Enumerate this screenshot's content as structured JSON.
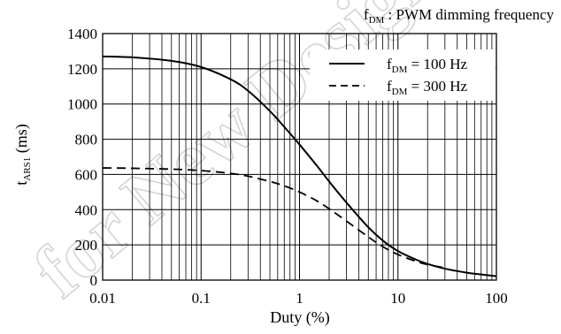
{
  "chart_data": {
    "type": "line",
    "title_main": "f",
    "title_sub": "DM",
    "title_rest": " : PWM dimming frequency",
    "xlabel": "Duty (%)",
    "ylabel_main": "t",
    "ylabel_sub": "ARS1",
    "ylabel_rest": " (ms)",
    "x_scale": "log",
    "xlim": [
      0.01,
      100
    ],
    "ylim": [
      0,
      1400
    ],
    "x_ticks": [
      "0.01",
      "0.1",
      "1",
      "10",
      "100"
    ],
    "y_ticks": [
      "0",
      "200",
      "400",
      "600",
      "800",
      "1000",
      "1200",
      "1400"
    ],
    "grid": true,
    "legend_position": "top-right",
    "series": [
      {
        "name_main": "f",
        "name_sub": "DM",
        "name_rest": " = 100 Hz",
        "style": "solid",
        "x": [
          0.01,
          0.02,
          0.05,
          0.1,
          0.2,
          0.3,
          0.5,
          0.7,
          1,
          1.5,
          2,
          3,
          5,
          7,
          10,
          15,
          20,
          30,
          50,
          70,
          100
        ],
        "y": [
          1270,
          1265,
          1245,
          1210,
          1140,
          1075,
          960,
          870,
          770,
          650,
          560,
          440,
          300,
          225,
          165,
          118,
          92,
          65,
          42,
          32,
          22
        ]
      },
      {
        "name_main": "f",
        "name_sub": "DM",
        "name_rest": " = 300 Hz",
        "style": "dashed",
        "x": [
          0.01,
          0.02,
          0.05,
          0.1,
          0.2,
          0.3,
          0.5,
          0.7,
          1,
          1.5,
          2,
          3,
          5,
          7,
          10,
          15,
          20,
          30
        ],
        "y": [
          637,
          635,
          630,
          622,
          606,
          590,
          560,
          535,
          500,
          450,
          405,
          335,
          245,
          190,
          145,
          108,
          88,
          70
        ]
      }
    ]
  },
  "watermark": {
    "text": "for New Design"
  }
}
